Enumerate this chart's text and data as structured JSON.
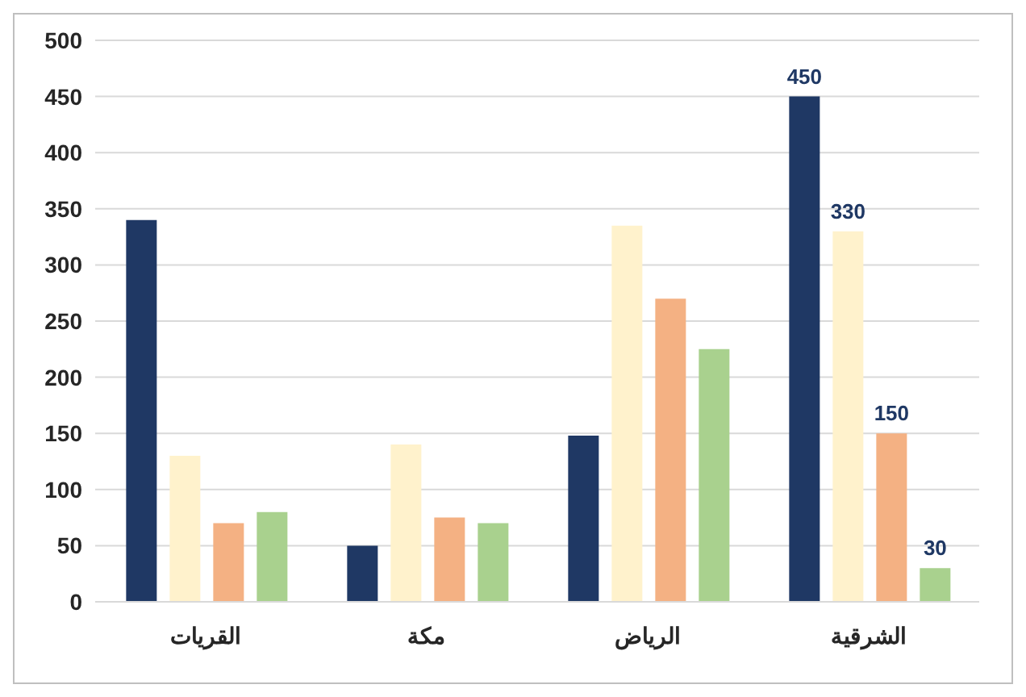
{
  "chart_data": {
    "type": "bar",
    "categories": [
      "القريات",
      "مكة",
      "الرياض",
      "الشرقية"
    ],
    "series": [
      {
        "color": "#1f3864",
        "values": [
          340,
          50,
          148,
          450
        ],
        "value_labels": [
          null,
          null,
          null,
          "450"
        ]
      },
      {
        "color": "#fff2cc",
        "values": [
          130,
          140,
          335,
          330
        ],
        "value_labels": [
          null,
          null,
          null,
          "330"
        ]
      },
      {
        "color": "#f4b183",
        "values": [
          70,
          75,
          270,
          150
        ],
        "value_labels": [
          null,
          null,
          null,
          "150"
        ]
      },
      {
        "color": "#a9d18e",
        "values": [
          80,
          70,
          225,
          30
        ],
        "value_labels": [
          null,
          null,
          null,
          "30"
        ]
      }
    ],
    "ylim": [
      0,
      500
    ],
    "yticks": [
      0,
      50,
      100,
      150,
      200,
      250,
      300,
      350,
      400,
      450,
      500
    ],
    "grid": "y",
    "legend": false
  }
}
